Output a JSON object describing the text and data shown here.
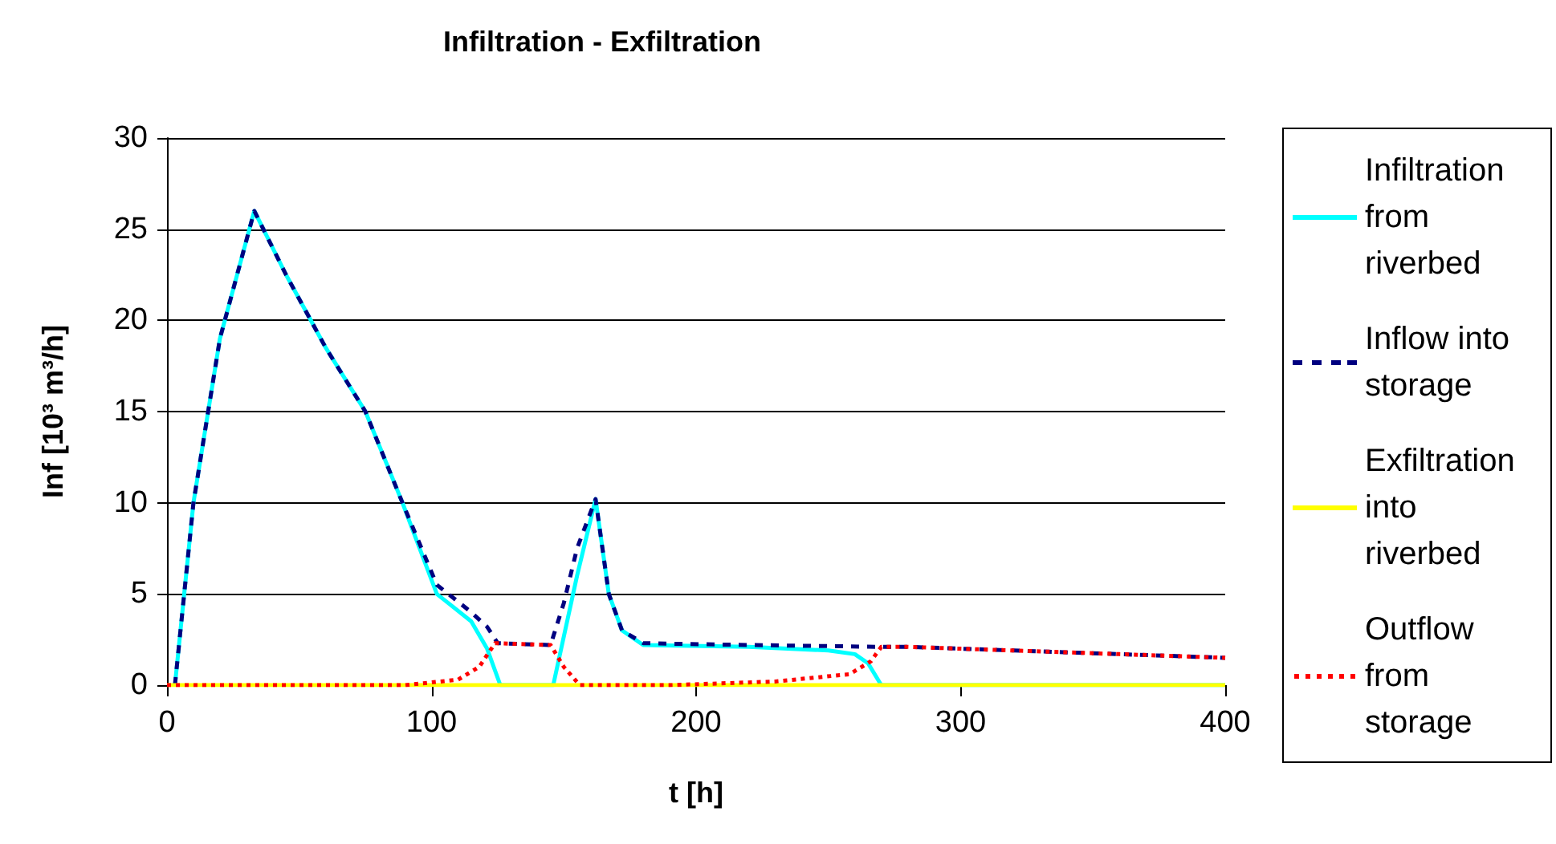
{
  "chart_data": {
    "type": "line",
    "title": "Infiltration - Exfiltration",
    "xlabel": "t [h]",
    "ylabel": "Inf [10³ m³/h]",
    "xlim": [
      0,
      400
    ],
    "xticks": [
      0,
      100,
      200,
      300,
      400
    ],
    "ylim": [
      0,
      30
    ],
    "yticks": [
      0,
      5,
      10,
      15,
      20,
      25,
      30
    ],
    "grid": "y",
    "legend": "right",
    "marker": "none",
    "series": [
      {
        "name": "Infiltration from riverbed",
        "color": "#00ffff",
        "line_style": "solid",
        "x": [
          3,
          10,
          20,
          33,
          45,
          60,
          75,
          89,
          102,
          115,
          121,
          126,
          146,
          155,
          162,
          167,
          172,
          180,
          220,
          250,
          260,
          265,
          270,
          300,
          400
        ],
        "values": [
          0,
          10,
          19,
          26,
          22.5,
          18.5,
          15,
          10,
          5,
          3.5,
          2,
          0,
          0,
          6,
          10.2,
          5,
          3,
          2.2,
          2.1,
          1.9,
          1.7,
          1.2,
          0,
          0,
          0
        ]
      },
      {
        "name": "Inflow into storage",
        "color": "#000080",
        "line_style": "dashed",
        "x": [
          3,
          10,
          20,
          33,
          45,
          60,
          75,
          89,
          102,
          115,
          121,
          125,
          145,
          150,
          155,
          162,
          167,
          172,
          180,
          220,
          270,
          280,
          320,
          360,
          400
        ],
        "values": [
          0,
          10,
          19,
          26,
          22.5,
          18.5,
          15,
          10,
          5.5,
          4,
          3.2,
          2.3,
          2.2,
          4.5,
          7.5,
          10.2,
          5,
          3,
          2.3,
          2.2,
          2.1,
          2.1,
          1.9,
          1.7,
          1.5
        ]
      },
      {
        "name": "Exfiltration into riverbed",
        "color": "#ffff00",
        "line_style": "solid",
        "x": [
          0,
          400
        ],
        "values": [
          0,
          0
        ]
      },
      {
        "name": "Outflow from storage",
        "color": "#ff0000",
        "line_style": "dotted",
        "x": [
          0,
          90,
          110,
          118,
          124,
          145,
          150,
          156,
          190,
          230,
          258,
          266,
          270,
          280,
          320,
          360,
          400
        ],
        "values": [
          0,
          0,
          0.3,
          1,
          2.3,
          2.2,
          1,
          0,
          0,
          0.2,
          0.6,
          1.3,
          2.1,
          2.1,
          1.9,
          1.7,
          1.5
        ]
      }
    ]
  }
}
